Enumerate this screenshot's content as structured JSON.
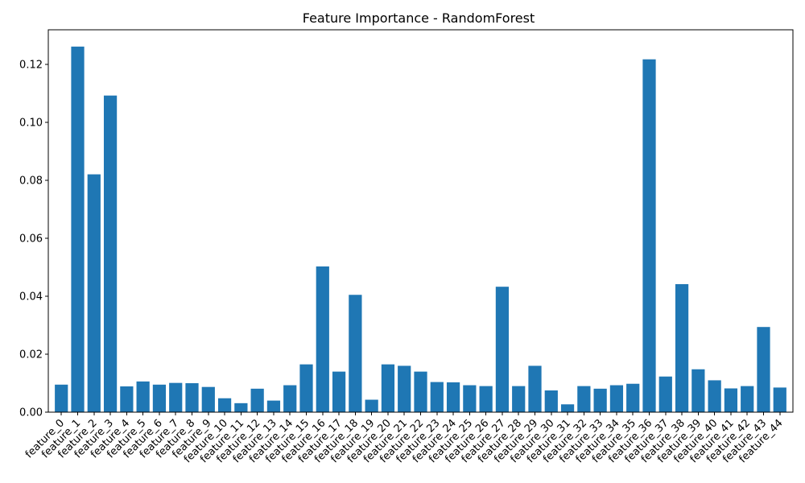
{
  "chart_data": {
    "type": "bar",
    "title": "Feature Importance - RandomForest",
    "xlabel": "",
    "ylabel": "",
    "ylim": [
      0,
      0.132
    ],
    "yticks": [
      "0.00",
      "0.02",
      "0.04",
      "0.06",
      "0.08",
      "0.10",
      "0.12"
    ],
    "grid": false,
    "legend": "none",
    "bar_color": "#1f77b4",
    "categories": [
      "feature_0",
      "feature_1",
      "feature_2",
      "feature_3",
      "feature_4",
      "feature_5",
      "feature_6",
      "feature_7",
      "feature_8",
      "feature_9",
      "feature_10",
      "feature_11",
      "feature_12",
      "feature_13",
      "feature_14",
      "feature_15",
      "feature_16",
      "feature_17",
      "feature_18",
      "feature_19",
      "feature_20",
      "feature_21",
      "feature_22",
      "feature_23",
      "feature_24",
      "feature_25",
      "feature_26",
      "feature_27",
      "feature_28",
      "feature_29",
      "feature_30",
      "feature_31",
      "feature_32",
      "feature_33",
      "feature_34",
      "feature_35",
      "feature_36",
      "feature_37",
      "feature_38",
      "feature_39",
      "feature_40",
      "feature_41",
      "feature_42",
      "feature_43",
      "feature_44"
    ],
    "values": [
      0.0095,
      0.1262,
      0.0821,
      0.1093,
      0.0089,
      0.0106,
      0.0095,
      0.0101,
      0.01,
      0.0087,
      0.0048,
      0.0031,
      0.0081,
      0.004,
      0.0093,
      0.0165,
      0.0503,
      0.014,
      0.0405,
      0.0043,
      0.0165,
      0.016,
      0.014,
      0.0104,
      0.0103,
      0.0093,
      0.009,
      0.0433,
      0.009,
      0.016,
      0.0075,
      0.0027,
      0.009,
      0.0081,
      0.0093,
      0.0098,
      0.1218,
      0.0123,
      0.0442,
      0.0148,
      0.011,
      0.0082,
      0.009,
      0.0294,
      0.0085
    ]
  }
}
